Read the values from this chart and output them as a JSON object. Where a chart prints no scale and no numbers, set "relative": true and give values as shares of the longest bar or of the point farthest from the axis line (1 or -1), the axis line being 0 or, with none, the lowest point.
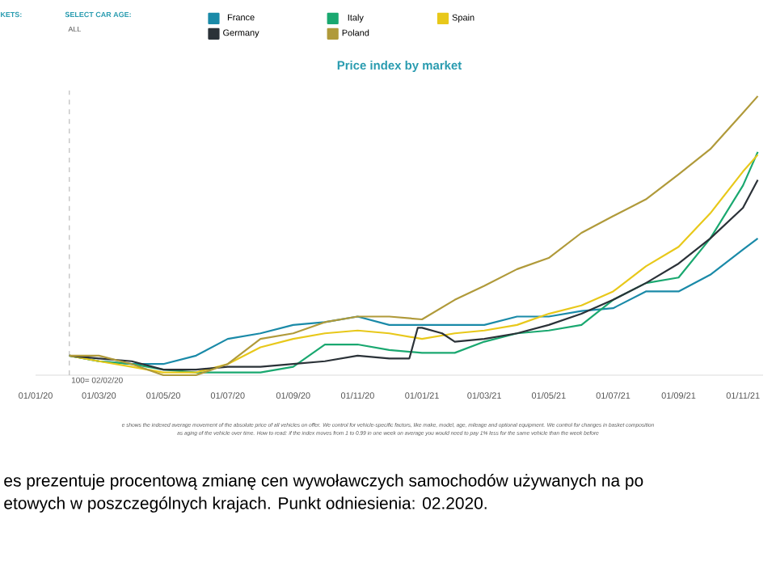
{
  "chart_data": {
    "type": "line",
    "title": "Price index by market",
    "relative": true,
    "legend": "top",
    "x": [
      "2020-02-02",
      "2020-03-01",
      "2020-04-01",
      "2020-05-01",
      "2020-06-01",
      "2020-07-01",
      "2020-08-01",
      "2020-09-01",
      "2020-10-01",
      "2020-11-01",
      "2020-12-01",
      "2021-01-01",
      "2021-02-01",
      "2021-03-01",
      "2021-04-01",
      "2021-05-01",
      "2021-06-01",
      "2021-07-01",
      "2021-08-01",
      "2021-09-01",
      "2021-10-01",
      "2021-11-01",
      "2021-11-15"
    ],
    "xlim": [
      "2020-01-01",
      "2021-11-20"
    ],
    "xticks": [
      {
        "value": "2020-01-01",
        "label": "01/01/20"
      },
      {
        "value": "2020-03-01",
        "label": "01/03/20"
      },
      {
        "value": "2020-05-01",
        "label": "01/05/20"
      },
      {
        "value": "2020-07-01",
        "label": "01/07/20"
      },
      {
        "value": "2020-09-01",
        "label": "01/09/20"
      },
      {
        "value": "2020-11-01",
        "label": "01/11/20"
      },
      {
        "value": "2021-01-01",
        "label": "01/01/21"
      },
      {
        "value": "2021-03-01",
        "label": "01/03/21"
      },
      {
        "value": "2021-05-01",
        "label": "01/05/21"
      },
      {
        "value": "2021-07-01",
        "label": "01/07/21"
      },
      {
        "value": "2021-09-01",
        "label": "01/09/21"
      },
      {
        "value": "2021-11-01",
        "label": "01/11/21"
      }
    ],
    "series": [
      {
        "name": "France",
        "color": "#1a8aa8",
        "values": [
          0.07,
          0.05,
          0.04,
          0.04,
          0.07,
          0.13,
          0.15,
          0.18,
          0.19,
          0.21,
          0.18,
          0.18,
          0.18,
          0.18,
          0.21,
          0.21,
          0.23,
          0.24,
          0.3,
          0.3,
          0.36,
          0.45,
          0.49
        ]
      },
      {
        "name": "Italy",
        "color": "#1aa870",
        "values": [
          0.07,
          0.05,
          0.04,
          0.02,
          0.01,
          0.01,
          0.01,
          0.03,
          0.11,
          0.11,
          0.09,
          0.08,
          0.08,
          0.12,
          0.15,
          0.16,
          0.18,
          0.27,
          0.33,
          0.35,
          0.49,
          0.68,
          0.8
        ]
      },
      {
        "name": "Spain",
        "color": "#e8c81a",
        "values": [
          0.07,
          0.05,
          0.03,
          0.01,
          0.01,
          0.04,
          0.1,
          0.13,
          0.15,
          0.16,
          0.15,
          0.13,
          0.15,
          0.16,
          0.18,
          0.22,
          0.25,
          0.3,
          0.39,
          0.46,
          0.58,
          0.73,
          0.79
        ]
      },
      {
        "name": "Germany",
        "color": "#2b3238",
        "x": [
          "2020-02-02",
          "2020-03-01",
          "2020-04-01",
          "2020-05-01",
          "2020-06-01",
          "2020-07-01",
          "2020-08-01",
          "2020-09-01",
          "2020-10-01",
          "2020-11-01",
          "2020-12-01",
          "2020-12-20",
          "2020-12-28",
          "2021-01-01",
          "2021-01-20",
          "2021-02-01",
          "2021-03-01",
          "2021-04-01",
          "2021-05-01",
          "2021-06-01",
          "2021-07-01",
          "2021-08-01",
          "2021-09-01",
          "2021-10-01",
          "2021-11-01",
          "2021-11-15"
        ],
        "values": [
          0.07,
          0.06,
          0.05,
          0.02,
          0.02,
          0.03,
          0.03,
          0.04,
          0.05,
          0.07,
          0.06,
          0.06,
          0.17,
          0.17,
          0.15,
          0.12,
          0.13,
          0.15,
          0.18,
          0.22,
          0.27,
          0.33,
          0.4,
          0.49,
          0.6,
          0.7
        ]
      },
      {
        "name": "Poland",
        "color": "#b09a3a",
        "values": [
          0.07,
          0.07,
          0.04,
          0,
          0,
          0.04,
          0.13,
          0.15,
          0.19,
          0.21,
          0.21,
          0.2,
          0.27,
          0.32,
          0.38,
          0.42,
          0.51,
          0.57,
          0.63,
          0.72,
          0.81,
          0.94,
          1
        ]
      }
    ],
    "ref_lines": [
      {
        "axis": "x",
        "value": "2020-02-02",
        "label": "100= 02/02/20",
        "line_style": "dashed",
        "color": "#9a9a9a"
      }
    ],
    "annotations": [
      "KETS:",
      "SELECT CAR AGE:",
      "ALL",
      "e shows the indexed average movement of the absolute price of all vehicles on offer. We control for vehicle-specific factors, like make, model, age, mileage and optional equipment. We control for changes in basket composition",
      "as aging of the vehicle over time. How to read: if the index moves from 1 to 0.99 in one week on average you would need to pay 1% less for the same vehicle than the week before",
      "es prezentuje procentową zmianę cen wywoławczych samochodów używanych na po",
      "etowych w poszczególnych krajach. Punkt odniesienia: 02.2020."
    ]
  }
}
